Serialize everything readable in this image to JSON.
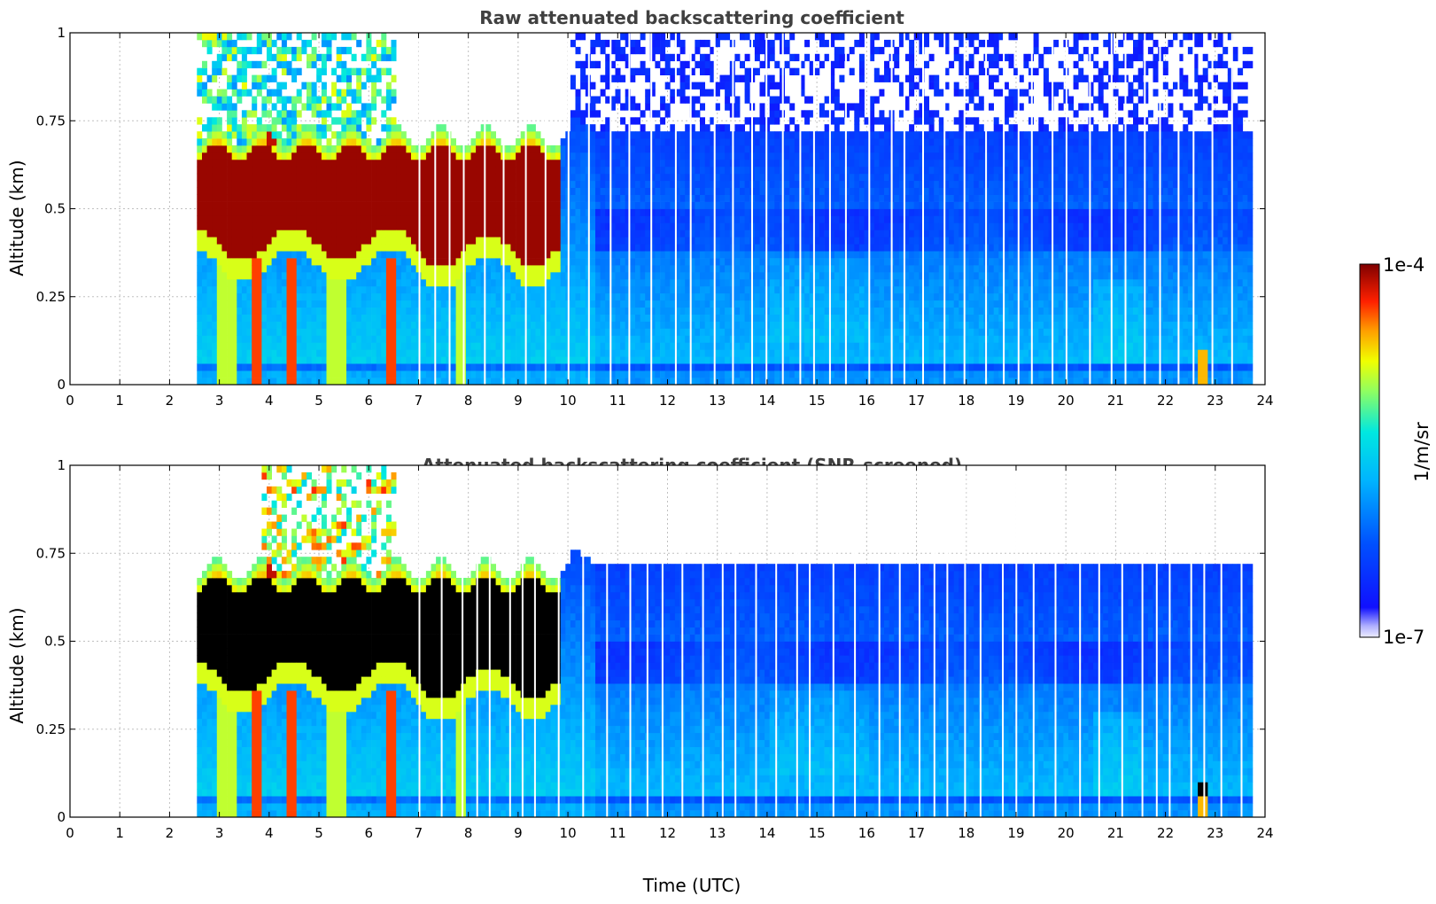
{
  "chart_data": [
    {
      "type": "heatmap",
      "title": "Raw attenuated backscattering coefficient",
      "xlabel": "",
      "ylabel": "Altitude (km)",
      "xlim": [
        0,
        24
      ],
      "ylim": [
        0,
        1
      ],
      "x_ticks": [
        "0",
        "1",
        "2",
        "3",
        "4",
        "5",
        "6",
        "7",
        "8",
        "9",
        "10",
        "11",
        "12",
        "13",
        "14",
        "15",
        "16",
        "17",
        "18",
        "19",
        "20",
        "21",
        "22",
        "23",
        "24"
      ],
      "y_ticks": [
        "0",
        "0.25",
        "0.5",
        "0.75",
        "1"
      ],
      "grid": true,
      "data_start_time": 2.55,
      "data_end_time": 23.75,
      "variant": "raw",
      "features": {
        "dense_aerosol_layer": {
          "time_range": [
            2.55,
            9.8
          ],
          "altitude_range": [
            0.35,
            0.67
          ],
          "level": "1e-4"
        },
        "background_layer_altitude_after_10h": 0.67,
        "strong_bottom_event_time": 22.75
      }
    },
    {
      "type": "heatmap",
      "title": "Attenuated backscattering coefficient (SNR-screened)",
      "xlabel": "Time (UTC)",
      "ylabel": "Altitude (km)",
      "xlim": [
        0,
        24
      ],
      "ylim": [
        0,
        1
      ],
      "x_ticks": [
        "0",
        "1",
        "2",
        "3",
        "4",
        "5",
        "6",
        "7",
        "8",
        "9",
        "10",
        "11",
        "12",
        "13",
        "14",
        "15",
        "16",
        "17",
        "18",
        "19",
        "20",
        "21",
        "22",
        "23",
        "24"
      ],
      "y_ticks": [
        "0",
        "0.25",
        "0.5",
        "0.75",
        "1"
      ],
      "grid": true,
      "data_start_time": 2.55,
      "data_end_time": 23.75,
      "variant": "screened",
      "features": {
        "saturated_layer": {
          "time_range": [
            2.55,
            9.8
          ],
          "altitude_range": [
            0.35,
            0.67
          ],
          "color": "#000000"
        },
        "screening_top_altitude_after_10h": 0.67,
        "strong_bottom_event_time": 22.75
      }
    }
  ],
  "colorbar": {
    "label": "1/m/sr",
    "max_label": "1e-4",
    "min_label": "1e-7",
    "scale": "log",
    "colormap": [
      "#e8e8ff",
      "#0000ff",
      "#00aaff",
      "#00e8e8",
      "#7fff7f",
      "#ffff00",
      "#ff8000",
      "#ff0000",
      "#800000"
    ]
  }
}
